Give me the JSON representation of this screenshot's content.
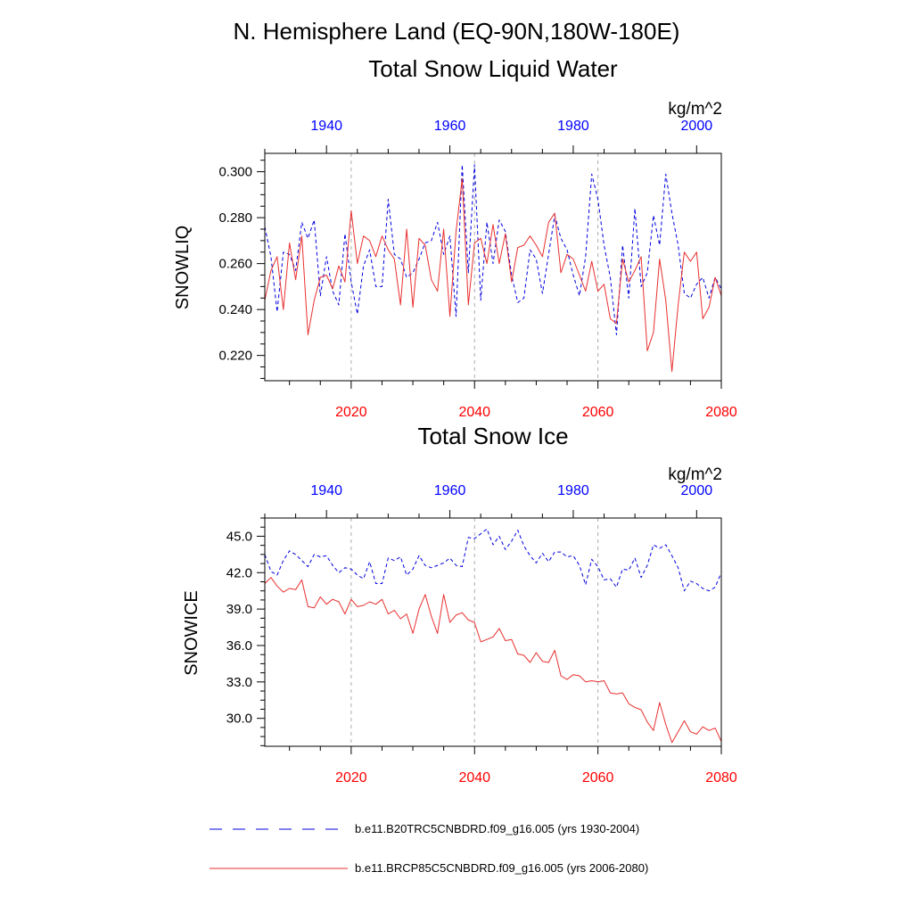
{
  "header": {
    "title": "N. Hemisphere Land (EQ-90N,180W-180E)"
  },
  "colors": {
    "future": "#e8302f",
    "future_tick": "#ff0000",
    "historical": "#0000e0",
    "historical_tick": "#0000ff",
    "grid": "#aaaaaa"
  },
  "legend": {
    "historical_label": "b.e11.B20TRC5CNBDRD.f09_g16.005 (yrs 1930-2004)",
    "future_label": "b.e11.BRCP85C5CNBDRD.f09_g16.005 (yrs 2006-2080)"
  },
  "chart_data": [
    {
      "type": "line",
      "title": "Total Snow Liquid Water",
      "units": "kg/m^2",
      "ylabel": "SNOWLIQ",
      "ylim": [
        0.209,
        0.308
      ],
      "yticks": [
        0.22,
        0.24,
        0.26,
        0.28,
        0.3
      ],
      "ytick_labels": [
        "0.220",
        "0.240",
        "0.260",
        "0.280",
        "0.300"
      ],
      "bottom_axis": {
        "xlim": [
          2006,
          2080
        ],
        "ticks": [
          2020,
          2040,
          2060,
          2080
        ],
        "tick_labels": [
          "2020",
          "2040",
          "2060",
          "2080"
        ]
      },
      "top_axis": {
        "xlim": [
          1930,
          2004
        ],
        "ticks": [
          1940,
          1960,
          1980,
          2000
        ],
        "tick_labels": [
          "1940",
          "1960",
          "1980",
          "2000"
        ]
      },
      "grid": "vertical dashed at bottom-axis major ticks",
      "series": [
        {
          "name": "b.e11.B20TRC5CNBDRD.f09_g16.005 (yrs 1930-2004)",
          "axis": "top",
          "style": "dashed",
          "x_start": 1930,
          "values": [
            0.276,
            0.263,
            0.239,
            0.265,
            0.264,
            0.257,
            0.278,
            0.271,
            0.279,
            0.246,
            0.263,
            0.248,
            0.242,
            0.273,
            0.252,
            0.238,
            0.259,
            0.266,
            0.25,
            0.25,
            0.288,
            0.264,
            0.262,
            0.254,
            0.256,
            0.262,
            0.269,
            0.27,
            0.278,
            0.264,
            0.272,
            0.237,
            0.303,
            0.256,
            0.303,
            0.244,
            0.278,
            0.26,
            0.279,
            0.274,
            0.255,
            0.243,
            0.245,
            0.266,
            0.262,
            0.247,
            0.264,
            0.281,
            0.271,
            0.266,
            0.255,
            0.246,
            0.263,
            0.299,
            0.288,
            0.268,
            0.254,
            0.229,
            0.268,
            0.245,
            0.284,
            0.25,
            0.256,
            0.281,
            0.268,
            0.299,
            0.282,
            0.268,
            0.247,
            0.245,
            0.251,
            0.254,
            0.245,
            0.254,
            0.249
          ]
        },
        {
          "name": "b.e11.BRCP85C5CNBDRD.f09_g16.005 (yrs 2006-2080)",
          "axis": "bottom",
          "style": "solid",
          "x_start": 2006,
          "values": [
            0.244,
            0.257,
            0.263,
            0.24,
            0.269,
            0.253,
            0.272,
            0.229,
            0.244,
            0.254,
            0.255,
            0.249,
            0.259,
            0.252,
            0.283,
            0.26,
            0.272,
            0.27,
            0.263,
            0.272,
            0.266,
            0.262,
            0.242,
            0.275,
            0.241,
            0.271,
            0.268,
            0.253,
            0.248,
            0.275,
            0.237,
            0.274,
            0.297,
            0.242,
            0.269,
            0.271,
            0.26,
            0.277,
            0.26,
            0.273,
            0.252,
            0.267,
            0.268,
            0.272,
            0.268,
            0.263,
            0.278,
            0.282,
            0.256,
            0.264,
            0.262,
            0.255,
            0.248,
            0.261,
            0.248,
            0.251,
            0.236,
            0.234,
            0.262,
            0.252,
            0.257,
            0.263,
            0.222,
            0.23,
            0.262,
            0.244,
            0.213,
            0.242,
            0.265,
            0.261,
            0.265,
            0.236,
            0.241,
            0.254,
            0.246
          ]
        }
      ]
    },
    {
      "type": "line",
      "title": "Total Snow Ice",
      "units": "kg/m^2",
      "ylabel": "SNOWICE",
      "ylim": [
        27.7,
        46.5
      ],
      "yticks": [
        30,
        33,
        36,
        39,
        42,
        45
      ],
      "ytick_labels": [
        "30.0",
        "33.0",
        "36.0",
        "39.0",
        "42.0",
        "45.0"
      ],
      "bottom_axis": {
        "xlim": [
          2006,
          2080
        ],
        "ticks": [
          2020,
          2040,
          2060,
          2080
        ],
        "tick_labels": [
          "2020",
          "2040",
          "2060",
          "2080"
        ]
      },
      "top_axis": {
        "xlim": [
          1930,
          2004
        ],
        "ticks": [
          1940,
          1960,
          1980,
          2000
        ],
        "tick_labels": [
          "1940",
          "1960",
          "1980",
          "2000"
        ]
      },
      "grid": "vertical dashed at bottom-axis major ticks",
      "series": [
        {
          "name": "b.e11.B20TRC5CNBDRD.f09_g16.005 (yrs 1930-2004)",
          "axis": "top",
          "style": "dashed",
          "x_start": 1930,
          "values": [
            43.5,
            42.1,
            41.8,
            43.0,
            43.8,
            43.5,
            43.0,
            42.5,
            43.5,
            43.3,
            43.4,
            42.6,
            42.0,
            42.4,
            42.3,
            41.8,
            41.5,
            42.9,
            41.1,
            41.1,
            43.2,
            43.0,
            43.3,
            41.8,
            42.3,
            43.4,
            42.6,
            42.4,
            42.6,
            42.8,
            43.2,
            42.6,
            42.5,
            44.9,
            44.8,
            45.2,
            45.6,
            44.3,
            45.0,
            43.9,
            44.6,
            45.5,
            44.2,
            43.4,
            42.8,
            43.6,
            42.9,
            43.7,
            43.7,
            43.3,
            43.4,
            42.6,
            41.0,
            43.1,
            42.5,
            41.4,
            41.5,
            40.8,
            42.3,
            42.2,
            43.2,
            41.6,
            42.6,
            44.3,
            44.0,
            44.3,
            43.4,
            42.4,
            40.5,
            41.3,
            41.1,
            40.7,
            40.5,
            40.8,
            42.0
          ]
        },
        {
          "name": "b.e11.BRCP85C5CNBDRD.f09_g16.005 (yrs 2006-2080)",
          "axis": "bottom",
          "style": "solid",
          "x_start": 2006,
          "values": [
            41.1,
            41.6,
            40.9,
            40.4,
            40.7,
            40.6,
            41.4,
            39.2,
            39.1,
            40.0,
            39.4,
            39.8,
            39.6,
            38.6,
            39.8,
            39.2,
            39.3,
            39.6,
            39.4,
            39.8,
            38.6,
            38.9,
            38.2,
            38.6,
            37.0,
            39.0,
            40.2,
            38.4,
            37.0,
            40.2,
            37.9,
            38.5,
            38.7,
            38.1,
            37.9,
            36.3,
            36.5,
            36.7,
            37.4,
            36.4,
            36.5,
            35.3,
            35.2,
            34.6,
            35.4,
            34.7,
            34.6,
            35.6,
            33.5,
            33.2,
            33.6,
            33.5,
            33.0,
            33.1,
            33.0,
            33.1,
            32.1,
            32.0,
            32.1,
            31.2,
            30.9,
            30.7,
            29.7,
            29.0,
            31.3,
            29.5,
            28.0,
            28.9,
            29.8,
            28.9,
            28.7,
            29.3,
            29.0,
            29.2,
            28.1
          ]
        }
      ]
    }
  ]
}
